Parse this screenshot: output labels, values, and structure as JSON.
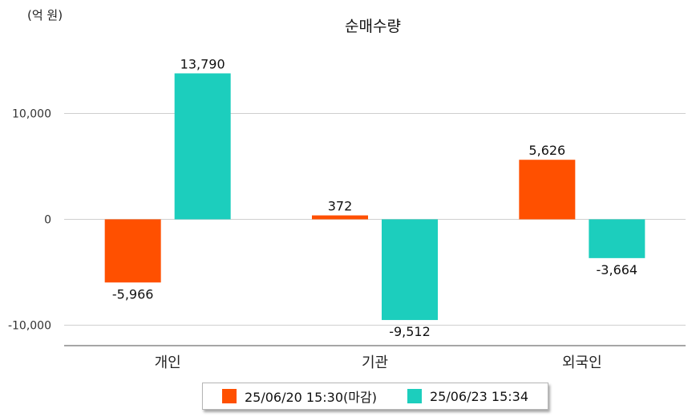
{
  "chart_data": {
    "type": "bar",
    "title": "순매수량",
    "unit_label": "(억 원)",
    "categories": [
      "개인",
      "기관",
      "외국인"
    ],
    "series": [
      {
        "name": "25/06/20 15:30(마감)",
        "color": "#ff5000",
        "values": [
          -5966,
          372,
          5626
        ],
        "value_labels": [
          "-5,966",
          "372",
          "5,626"
        ]
      },
      {
        "name": "25/06/23 15:34",
        "color": "#1ccebd",
        "values": [
          13790,
          -9512,
          -3664
        ],
        "value_labels": [
          "13,790",
          "-9,512",
          "-3,664"
        ]
      }
    ],
    "y_ticks": [
      10000,
      0,
      -10000
    ],
    "y_tick_labels": [
      "10,000",
      "0",
      "-10,000"
    ],
    "ylim": [
      -11900,
      15500
    ],
    "grid": true,
    "legend_position": "bottom"
  }
}
